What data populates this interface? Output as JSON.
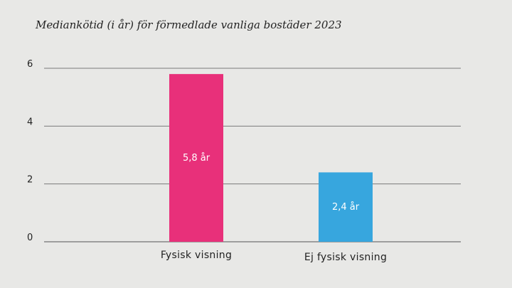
{
  "chart_data": {
    "type": "bar",
    "title": "Mediankötid (i år) för förmedlade vanliga bostäder  2023",
    "xlabel": "",
    "ylabel": "",
    "categories": [
      "Fysisk visning",
      "Ej fysisk visning"
    ],
    "values": [
      5.8,
      2.4
    ],
    "data_labels": [
      "5,8 år",
      "2,4 år"
    ],
    "colors": [
      "#e8307a",
      "#37a6de"
    ],
    "ylim": [
      0,
      6
    ],
    "yticks": [
      0,
      2,
      4,
      6
    ],
    "grid": true,
    "legend": "none"
  }
}
